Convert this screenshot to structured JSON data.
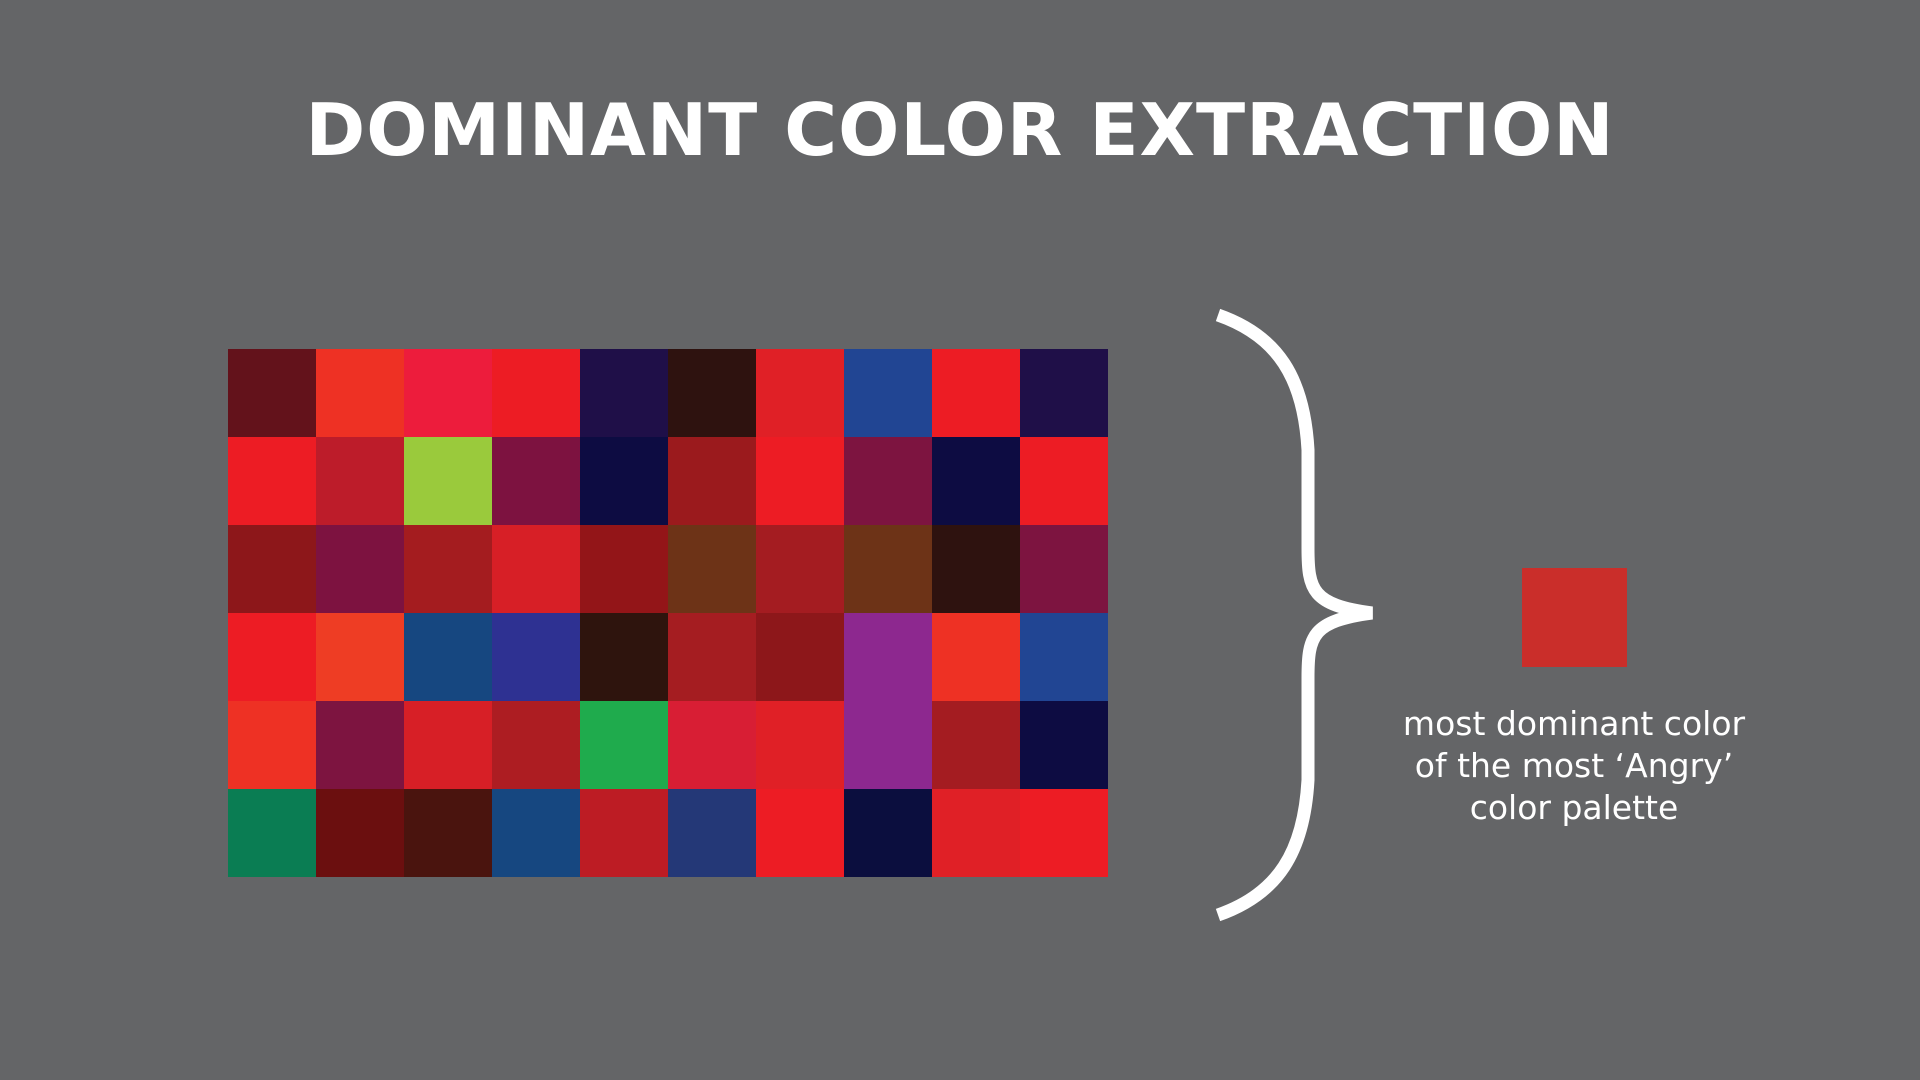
{
  "title": "DOMINANT COLOR EXTRACTION",
  "palette_grid": [
    [
      "#63121b",
      "#ee3124",
      "#ed1c3c",
      "#ed1c24",
      "#1f0f48",
      "#2e120f",
      "#e02026",
      "#214593",
      "#ed1c24",
      "#1f0f48"
    ],
    [
      "#ed1c24",
      "#bd1c2a",
      "#9aca3c",
      "#7d1240",
      "#0d0c42",
      "#9b1a1d",
      "#ed1c24",
      "#7d1440",
      "#0d0c42",
      "#ed1c24"
    ],
    [
      "#8d171a",
      "#7d1240",
      "#a41c1f",
      "#d71f26",
      "#931518",
      "#6d3317",
      "#a41c21",
      "#6d3317",
      "#2e120f",
      "#7d1440"
    ],
    [
      "#ed1c24",
      "#ee3d24",
      "#164780",
      "#2e3192",
      "#2e140d",
      "#a51d21",
      "#8d171a",
      "#8d288f",
      "#ee3124",
      "#214593"
    ],
    [
      "#ee3124",
      "#7d1440",
      "#d71f26",
      "#ad1d22",
      "#1fab4d",
      "#d81e34",
      "#e02026",
      "#8d288f",
      "#a41c21",
      "#0d0c42"
    ],
    [
      "#0a7d53",
      "#6b0f0f",
      "#4a140e",
      "#164780",
      "#bd1c24",
      "#243877",
      "#ed1c24",
      "#0b0e3e",
      "#e02026",
      "#ed1c24"
    ]
  ],
  "brace_color": "#ffffff",
  "dominant_color": "#ca2e2a",
  "caption_lines": [
    "most dominant color",
    "of the most ‘Angry’",
    "color palette"
  ]
}
